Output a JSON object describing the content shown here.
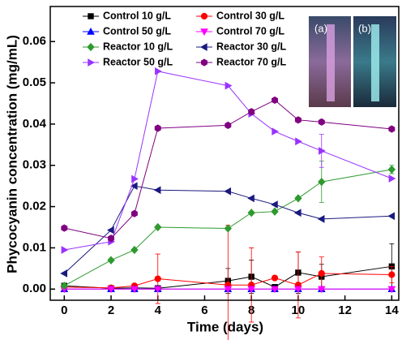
{
  "chart_data": {
    "type": "line",
    "xlabel": "Time (days)",
    "ylabel": "Phycocyanin concentration (mg/mL)",
    "x": [
      0,
      2,
      3,
      4,
      7,
      8,
      9,
      10,
      11,
      14
    ],
    "xlim": [
      -0.6,
      14.3
    ],
    "xticks": [
      0,
      2,
      4,
      6,
      8,
      10,
      12,
      14
    ],
    "ylim": [
      -0.0027,
      0.0685
    ],
    "yticks": [
      {
        "value": 0,
        "label": "0.00"
      },
      {
        "value": 0.01,
        "label": "0.01"
      },
      {
        "value": 0.02,
        "label": "0.02"
      },
      {
        "value": 0.03,
        "label": "0.03"
      },
      {
        "value": 0.04,
        "label": "0.04"
      },
      {
        "value": 0.05,
        "label": "0.05"
      },
      {
        "value": 0.06,
        "label": "0.06"
      }
    ],
    "annotations": [
      "(a)",
      "(b)"
    ],
    "series": [
      {
        "name": "Control 10 g/L",
        "color": "#000000",
        "marker": "square",
        "values": [
          0.0008,
          0.0002,
          0.0003,
          0.0002,
          0.002,
          0.003,
          0.0005,
          0.004,
          0.003,
          0.0055
        ],
        "errors": [
          0,
          0,
          0,
          0,
          0.003,
          0.004,
          0,
          0.005,
          0.003,
          0.0055
        ]
      },
      {
        "name": "Control 30 g/L",
        "color": "#ff0000",
        "marker": "circle",
        "values": [
          0.0005,
          0.0003,
          0.0008,
          0.0025,
          0.001,
          0.001,
          0.0027,
          0.001,
          0.0038,
          0.0035
        ],
        "errors": [
          0,
          0,
          0,
          0.006,
          0.0145,
          0.009,
          0,
          0.008,
          0.004,
          0.002
        ]
      },
      {
        "name": "Control 50 g/L",
        "color": "#0000ff",
        "marker": "triangle-up",
        "values": [
          0,
          0,
          0,
          0,
          0,
          0,
          0,
          0,
          0,
          0
        ]
      },
      {
        "name": "Control 70 g/L",
        "color": "#ff00ff",
        "marker": "triangle-down",
        "values": [
          0,
          0,
          0,
          0,
          0,
          0,
          0,
          0,
          0,
          0
        ]
      },
      {
        "name": "Reactor 10 g/L",
        "color": "#2e9a2e",
        "marker": "diamond",
        "values": [
          0.0008,
          0.007,
          0.0095,
          0.015,
          0.0147,
          0.0185,
          0.0188,
          0.022,
          0.026,
          0.029
        ],
        "errors": [
          0,
          0,
          0,
          0,
          0,
          0,
          0,
          0,
          0.005,
          0.001
        ]
      },
      {
        "name": "Reactor 30 g/L",
        "color": "#1a1a80",
        "marker": "triangle-left",
        "values": [
          0.0038,
          0.0143,
          0.025,
          0.024,
          0.0237,
          0.022,
          0.0205,
          0.0185,
          0.017,
          0.0177
        ]
      },
      {
        "name": "Reactor 50 g/L",
        "color": "#9933ff",
        "marker": "triangle-right",
        "values": [
          0.0095,
          0.0115,
          0.0267,
          0.0528,
          0.0493,
          0.0425,
          0.0382,
          0.0358,
          0.0335,
          0.0268
        ],
        "errors": [
          0,
          0,
          0,
          0,
          0,
          0,
          0,
          0,
          0.004,
          0
        ]
      },
      {
        "name": "Reactor 70 g/L",
        "color": "#800080",
        "marker": "hexagon",
        "values": [
          0.0148,
          0.0123,
          0.0183,
          0.039,
          0.0397,
          0.043,
          0.0458,
          0.041,
          0.0405,
          0.0388
        ]
      }
    ]
  }
}
